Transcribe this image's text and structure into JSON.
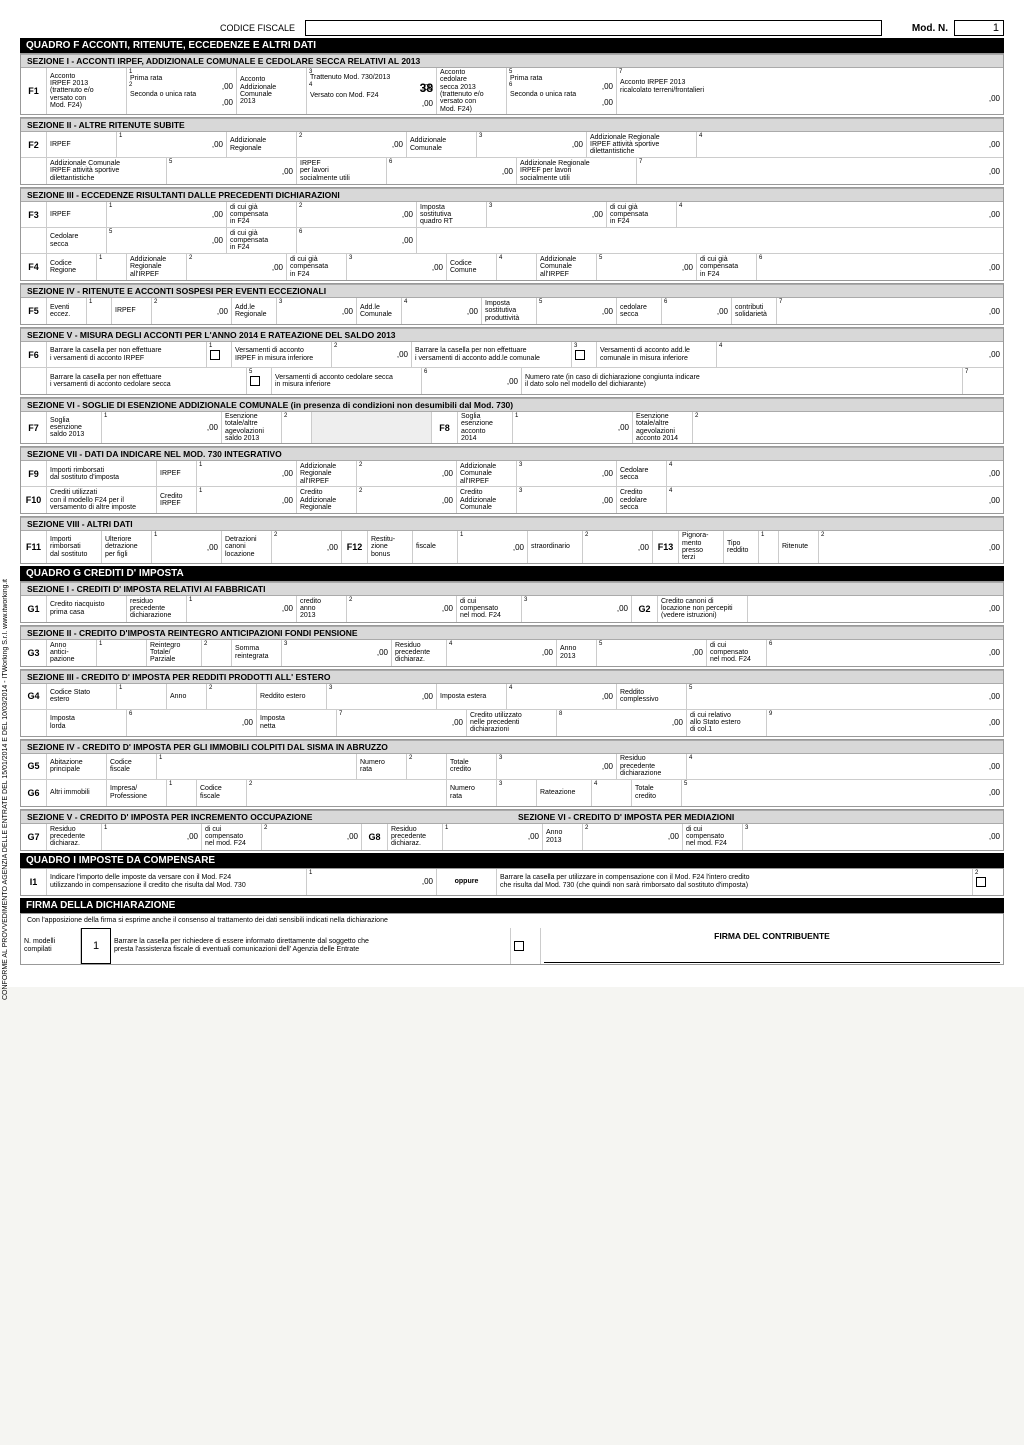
{
  "header": {
    "codice_fiscale_label": "CODICE FISCALE",
    "mod_n_label": "Mod. N.",
    "mod_n_value": "1"
  },
  "quadroF": {
    "title": "QUADRO F ACCONTI, RITENUTE, ECCEDENZE E ALTRI DATI",
    "sez1": {
      "title": "SEZIONE I  -  ACCONTI IRPEF, ADDIZIONALE COMUNALE E CEDOLARE SECCA RELATIVI AL 2013",
      "code": "F1",
      "prima_rata": "Prima rata",
      "acconto_irpef_2013": "Acconto\nIRPEF 2013",
      "trattenuto": "(trattenuto e/o\nversato con\nMod. F24)",
      "seconda": "Seconda o unica rata",
      "acconto_add_com": "Acconto\nAddizionale\nComunale\n2013",
      "tratt730": "Trattenuto Mod. 730/2013",
      "versatoF24": "Versato con Mod. F24",
      "acconto_ced": "Acconto\ncedolare\nsecca 2013",
      "acconto_irpef_ricalc": "Acconto IRPEF 2013\nricalcolato terreni/frontalieri",
      "v38": "38",
      "z": ",00"
    },
    "sez2": {
      "title": "SEZIONE II  -  ALTRE RITENUTE SUBITE",
      "code": "F2",
      "irpef": "IRPEF",
      "add_reg": "Addizionale\nRegionale",
      "add_com": "Addizionale\nComunale",
      "add_reg_sport": "Addizionale Regionale\nIRPEF attività sportive\ndilettantistiche",
      "add_com_sport": "Addizionale Comunale\nIRPEF attività sportive\ndilettantistiche",
      "irpef_lav": "IRPEF\nper lavori\nsocialmente utili",
      "add_reg_lav": "Addizionale Regionale\nIRPEF per lavori\nsocialmente utili",
      "z": ",00"
    },
    "sez3": {
      "title": "SEZIONE III  -  ECCEDENZE RISULTANTI DALLE PRECEDENTI DICHIARAZIONI",
      "code3": "F3",
      "code4": "F4",
      "irpef": "IRPEF",
      "dicui": "di cui già\ncompensata\nin F24",
      "imp_sost": "Imposta\nsostitutiva\nquadro RT",
      "ced": "Cedolare\nsecca",
      "cod_reg": "Codice\nRegione",
      "add_reg_irpef": "Addizionale\nRegionale\nall'IRPEF",
      "cod_com": "Codice\nComune",
      "add_com_irpef": "Addizionale\nComunale\nall'IRPEF",
      "z": ",00"
    },
    "sez4": {
      "title": "SEZIONE IV  -  RITENUTE E ACCONTI SOSPESI PER EVENTI ECCEZIONALI",
      "code": "F5",
      "eventi": "Eventi\neccez.",
      "irpef": "IRPEF",
      "addle_reg": "Add.le\nRegionale",
      "addle_com": "Add.le\nComunale",
      "imp_sost": "Imposta\nsostitutiva\nproduttività",
      "ced": "cedolare\nsecca",
      "contr": "contributi\nsolidarietà",
      "z": ",00"
    },
    "sez5": {
      "title": "SEZIONE V  -  MISURA DEGLI ACCONTI PER L'ANNO 2014 E RATEAZIONE DEL SALDO 2013",
      "code": "F6",
      "barrare1": "Barrare la casella per non effettuare\ni versamenti di acconto IRPEF",
      "vers_irpef": "Versamenti di acconto\nIRPEF in misura inferiore",
      "barrare2": "Barrare la casella per non effettuare\ni versamenti di acconto add.le comunale",
      "vers_addle": "Versamenti di acconto add.le\ncomunale in misura inferiore",
      "barrare3": "Barrare la casella per non effettuare\ni versamenti di acconto cedolare secca",
      "vers_ced": "Versamenti di acconto cedolare secca\nin misura inferiore",
      "num_rate": "Numero rate (in caso di dichiarazione congiunta indicare\nil dato solo nel modello del dichiarante)",
      "z": ",00"
    },
    "sez6": {
      "title": "SEZIONE VI  -  SOGLIE DI ESENZIONE ADDIZIONALE COMUNALE (in presenza di condizioni non desumibili dal Mod. 730)",
      "code7": "F7",
      "code8": "F8",
      "soglia_saldo": "Soglia\nesenzione\nsaldo 2013",
      "esenzione_saldo": "Esenzione\ntotale/altre\nagevolazioni\nsaldo 2013",
      "soglia_acc": "Soglia\nesenzione\nacconto\n2014",
      "esenzione_acc": "Esenzione\ntotale/altre\nagevolazioni\nacconto 2014",
      "z": ",00"
    },
    "sez7": {
      "title": "SEZIONE VII  -  DATI DA INDICARE NEL MOD. 730 INTEGRATIVO",
      "code9": "F9",
      "code10": "F10",
      "imp_rimb": "Importi rimborsati\ndal sostituto d'imposta",
      "irpef": "IRPEF",
      "add_reg": "Addizionale\nRegionale\nall'IRPEF",
      "add_com": "Addizionale\nComunale\nall'IRPEF",
      "ced": "Cedolare\nsecca",
      "crediti": "Crediti utilizzati\ncon il modello F24 per il\nversamento di altre imposte",
      "cred_irpef": "Credito\nIRPEF",
      "cred_add_reg": "Credito\nAddizionale\nRegionale",
      "cred_add_com": "Credito\nAddizionale\nComunale",
      "cred_ced": "Credito\ncedolare\nsecca",
      "z": ",00"
    },
    "sez8": {
      "title": "SEZIONE VIII  -  ALTRI DATI",
      "code11": "F11",
      "code12": "F12",
      "code13": "F13",
      "imp_rimb": "Importi\nrimborsati\ndal sostituto",
      "ult_detr": "Ulteriore\ndetrazione\nper figli",
      "detr_can": "Detrazioni\ncanoni\nlocazione",
      "restituz": "Restitu-\nzione\nbonus",
      "fiscale": "fiscale",
      "straord": "straordinario",
      "pignor": "Pignora-\nmento\npresso\nterzi",
      "tipo_redd": "Tipo\nreddito",
      "rit": "Ritenute",
      "z": ",00"
    }
  },
  "quadroG": {
    "title": "QUADRO G CREDITI D' IMPOSTA",
    "sez1": {
      "title": "SEZIONE I  -  CREDITI D' IMPOSTA RELATIVI AI FABBRICATI",
      "code": "G1",
      "code2": "G2",
      "credito_riacq": "Credito riacquisto\nprima casa",
      "residuo": "residuo\nprecedente\ndichiarazione",
      "credito_anno": "credito\nanno\n2013",
      "dicui_comp": "di cui\ncompensato\nnel mod. F24",
      "credito_canoni": "Credito canoni di\nlocazione non percepiti\n(vedere istruzioni)",
      "z": ",00"
    },
    "sez2": {
      "title": "SEZIONE II  -  CREDITO D'IMPOSTA REINTEGRO ANTICIPAZIONI FONDI PENSIONE",
      "code": "G3",
      "anno_antic": "Anno\nantici-\npazione",
      "reintegro": "Reintegro\nTotale/\nParziale",
      "somma": "Somma\nreintegrata",
      "residuo": "Residuo\nprecedente\ndichiaraz.",
      "anno2013": "Anno\n2013",
      "dicui": "di cui\ncompensato\nnel mod. F24",
      "z": ",00"
    },
    "sez3": {
      "title": "SEZIONE III  -  CREDITO D' IMPOSTA PER REDDITI PRODOTTI ALL' ESTERO",
      "code": "G4",
      "cod_stato": "Codice Stato\nestero",
      "anno": "Anno",
      "redd_est": "Reddito estero",
      "imp_est": "Imposta estera",
      "redd_compl": "Reddito\ncomplessivo",
      "imp_lorda": "Imposta\nlorda",
      "imp_netta": "Imposta\nnetta",
      "cred_util": "Credito utilizzato\nnelle precedenti\ndichiarazioni",
      "dicui_rel": "di cui relativo\nallo Stato estero\ndi col.1",
      "z": ",00"
    },
    "sez4": {
      "title": "SEZIONE IV  -  CREDITO D' IMPOSTA PER GLI IMMOBILI COLPITI DAL SISMA IN ABRUZZO",
      "code5": "G5",
      "code6": "G6",
      "abit": "Abitazione\nprincipale",
      "cf": "Codice\nfiscale",
      "num_rata": "Numero\nrata",
      "tot_cred": "Totale\ncredito",
      "residuo": "Residuo\nprecedente\ndichiarazione",
      "altri": "Altri immobili",
      "impresa": "Impresa/\nProfessione",
      "rateaz": "Rateazione",
      "z": ",00"
    },
    "sez5": {
      "title5": "SEZIONE V  -  CREDITO D' IMPOSTA PER INCREMENTO OCCUPAZIONE",
      "title6": "SEZIONE VI  -  CREDITO D' IMPOSTA PER MEDIAZIONI",
      "code7": "G7",
      "code8": "G8",
      "residuo": "Residuo\nprecedente\ndichiaraz.",
      "dicui": "di cui\ncompensato\nnel mod. F24",
      "anno2013": "Anno\n2013",
      "z": ",00"
    }
  },
  "quadroI": {
    "title": "QUADRO I IMPOSTE DA COMPENSARE",
    "code": "I1",
    "txt1": "Indicare l'importo delle imposte da versare con il Mod. F24\nutilizzando in compensazione il credito che risulta dal Mod. 730",
    "oppure": "oppure",
    "txt2": "Barrare la casella per utilizzare in compensazione con il Mod. F24 l'intero credito\nche risulta dal Mod. 730 (che quindi non sarà rimborsato dal sostituto d'imposta)",
    "z": ",00"
  },
  "firma": {
    "title": "FIRMA DELLA DICHIARAZIONE",
    "consenso": "Con l'apposizione della firma si esprime anche il consenso al trattamento dei dati sensibili indicati nella dichiarazione",
    "n_modelli": "N. modelli\ncompilati",
    "n_val": "1",
    "barrare": "Barrare la casella per richiedere di essere informato direttamente dal soggetto che\npresta l'assistenza fiscale di eventuali comunicazioni dell' Agenzia delle Entrate",
    "sig": "FIRMA DEL CONTRIBUENTE"
  },
  "side": "CONFORME AL PROVVEDIMENTO AGENZIA DELLE ENTRATE DEL 15/01/2014 E DEL 10/03/2014 - ITWorking S.r.l.    www.itworking.it"
}
